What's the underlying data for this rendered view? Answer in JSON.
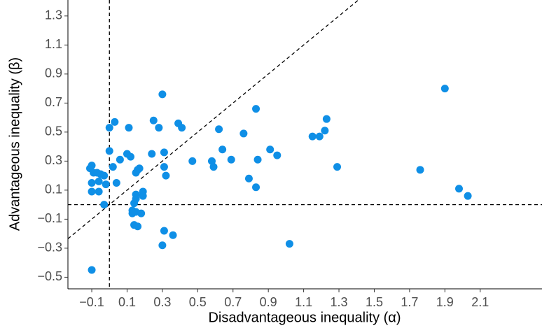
{
  "chart_data": {
    "type": "scatter",
    "x_label": "Disadvantageous inequality (α)",
    "y_label": "Advantageous inequality (β)",
    "color": "#0f8fe6",
    "xlim": [
      -0.235,
      2.45
    ],
    "ylim": [
      -0.58,
      1.41
    ],
    "xticks": [
      {
        "value": -0.1,
        "label": "−0.1"
      },
      0.1,
      0.3,
      0.5,
      0.7,
      0.9,
      1.1,
      1.3,
      1.5,
      1.7,
      1.9,
      2.1
    ],
    "yticks": [
      {
        "value": -0.5,
        "label": "−0.5"
      },
      {
        "value": -0.3,
        "label": "−0.3"
      },
      {
        "value": -0.1,
        "label": "−0.1"
      },
      0.1,
      0.3,
      0.5,
      0.7,
      0.9,
      1.1,
      1.3
    ],
    "x": [
      -0.11,
      -0.1,
      -0.09,
      -0.1,
      -0.1,
      -0.1,
      -0.07,
      -0.06,
      -0.06,
      -0.05,
      -0.03,
      -0.02,
      -0.03,
      0.0,
      0.0,
      0.02,
      0.03,
      0.04,
      0.06,
      0.1,
      0.11,
      0.12,
      0.13,
      0.14,
      0.14,
      0.15,
      0.15,
      0.15,
      0.16,
      0.15,
      0.16,
      0.17,
      0.19,
      0.19,
      0.18,
      0.13,
      0.24,
      0.25,
      0.28,
      0.3,
      0.31,
      0.31,
      0.32,
      0.3,
      0.31,
      0.36,
      0.39,
      0.41,
      0.47,
      0.58,
      0.59,
      0.62,
      0.64,
      0.69,
      0.76,
      0.79,
      0.83,
      0.83,
      0.84,
      0.91,
      0.95,
      1.02,
      1.15,
      1.19,
      1.22,
      1.23,
      1.29,
      1.76,
      1.9,
      1.98,
      2.03
    ],
    "values": [
      0.25,
      0.27,
      0.22,
      0.15,
      0.09,
      -0.45,
      0.22,
      0.16,
      0.09,
      0.21,
      0.2,
      0.14,
      0.0,
      0.37,
      0.53,
      0.26,
      0.57,
      0.15,
      0.31,
      0.35,
      0.53,
      0.33,
      -0.06,
      -0.14,
      0.01,
      0.04,
      0.07,
      0.22,
      0.24,
      -0.05,
      -0.15,
      0.25,
      0.09,
      0.06,
      -0.06,
      -0.04,
      0.35,
      0.58,
      0.53,
      0.76,
      0.36,
      0.26,
      0.2,
      -0.28,
      -0.18,
      -0.21,
      0.56,
      0.53,
      0.3,
      0.3,
      0.26,
      0.52,
      0.38,
      0.31,
      0.49,
      0.18,
      0.12,
      0.66,
      0.31,
      0.38,
      0.34,
      -0.27,
      0.47,
      0.47,
      0.51,
      0.59,
      0.26,
      0.24,
      0.8,
      0.11,
      0.06
    ]
  }
}
